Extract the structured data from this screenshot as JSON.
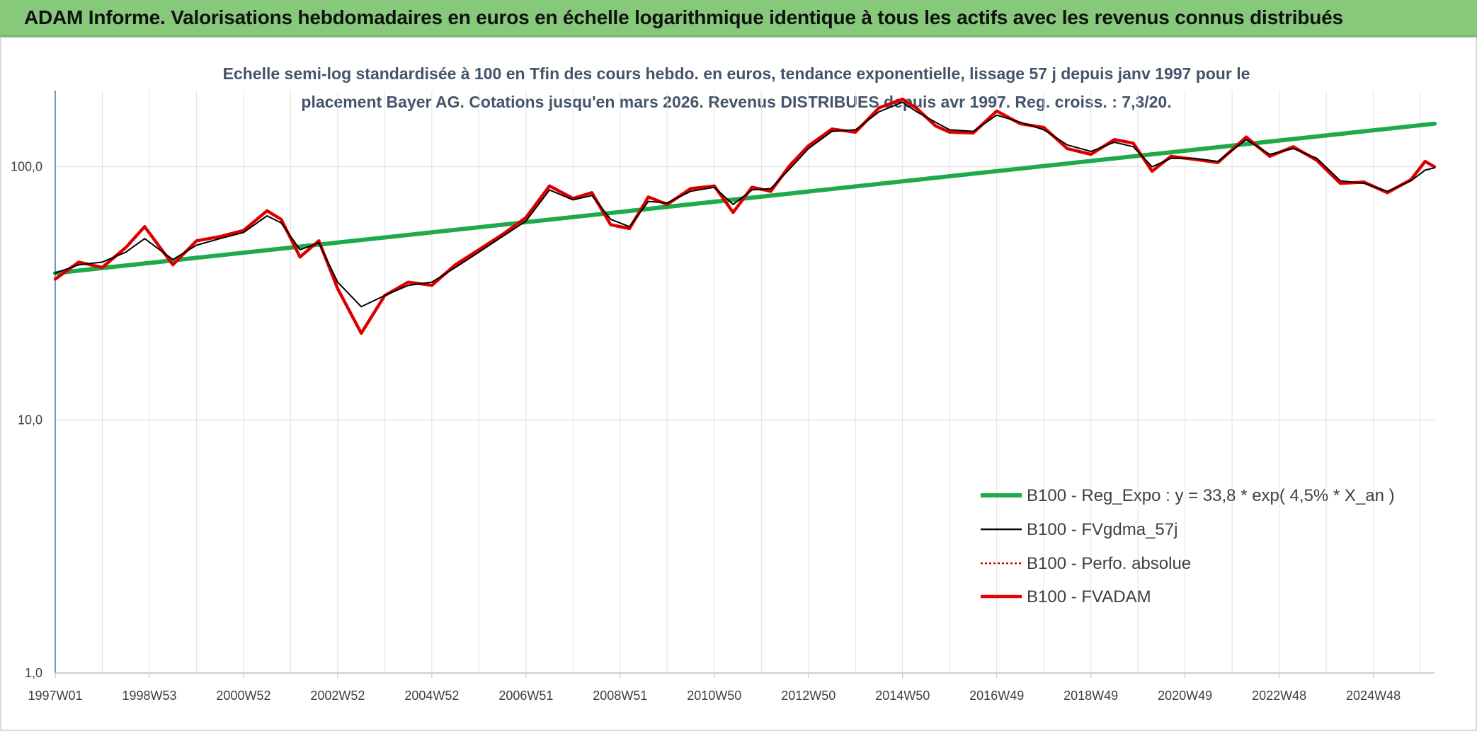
{
  "header": {
    "title": "ADAM Informe. Valorisations hebdomadaires en euros en échelle logarithmique identique à tous les actifs avec les revenus connus distribués"
  },
  "colors": {
    "header_bg": "#86c97a",
    "corner": "#f2b91c",
    "trend": "#1faa4a",
    "smooth": "#000000",
    "fvadam": "#ee0000"
  },
  "chart_data": {
    "type": "line",
    "subtitle_lines": [
      "Echelle semi-log standardisée à 100 en Tfin des cours hebdo. en euros, tendance exponentielle, lissage 57 j depuis janv 1997 pour le",
      "placement Bayer AG. Cotations jusqu'en mars 2026. Revenus DISTRIBUES depuis avr 1997. Reg. croiss. : 7,3/20."
    ],
    "y_scale": "log",
    "ylim": [
      1,
      200
    ],
    "xlim": [
      1997.0,
      2026.3
    ],
    "y_ticks": [
      {
        "value": 1,
        "label": "1,0"
      },
      {
        "value": 10,
        "label": "10,0"
      },
      {
        "value": 100,
        "label": "100,0"
      }
    ],
    "x_ticks": [
      {
        "value": 1997.0,
        "label": "1997W01"
      },
      {
        "value": 1999.0,
        "label": "1998W53"
      },
      {
        "value": 2001.0,
        "label": "2000W52"
      },
      {
        "value": 2003.0,
        "label": "2002W52"
      },
      {
        "value": 2005.0,
        "label": "2004W52"
      },
      {
        "value": 2007.0,
        "label": "2006W51"
      },
      {
        "value": 2009.0,
        "label": "2008W51"
      },
      {
        "value": 2011.0,
        "label": "2010W50"
      },
      {
        "value": 2013.0,
        "label": "2012W50"
      },
      {
        "value": 2015.0,
        "label": "2014W50"
      },
      {
        "value": 2017.0,
        "label": "2016W49"
      },
      {
        "value": 2019.0,
        "label": "2018W49"
      },
      {
        "value": 2021.0,
        "label": "2020W49"
      },
      {
        "value": 2023.0,
        "label": "2022W48"
      },
      {
        "value": 2025.0,
        "label": "2024W48"
      }
    ],
    "grid": true,
    "legend_position": "bottom-right",
    "series": [
      {
        "name": "B100 - Reg_Expo : y = 33,8 * exp( 4,5% *  X_an )",
        "color": "#1faa4a",
        "style": "solid-thick",
        "x": [
          1997.0,
          2026.3
        ],
        "values": [
          38,
          148
        ]
      },
      {
        "name": "B100 - FVgdma_57j",
        "color": "#000000",
        "style": "solid-thin",
        "x": [
          1997.0,
          1997.5,
          1998.0,
          1998.5,
          1998.9,
          1999.5,
          2000.0,
          2000.5,
          2001.0,
          2001.5,
          2001.8,
          2002.2,
          2002.6,
          2003.0,
          2003.5,
          2004.0,
          2004.5,
          2005.0,
          2005.5,
          2006.0,
          2006.5,
          2007.0,
          2007.5,
          2008.0,
          2008.4,
          2008.8,
          2009.2,
          2009.6,
          2010.0,
          2010.5,
          2011.0,
          2011.4,
          2011.8,
          2012.2,
          2012.6,
          2013.0,
          2013.5,
          2014.0,
          2014.5,
          2015.0,
          2015.3,
          2015.7,
          2016.0,
          2016.5,
          2017.0,
          2017.5,
          2018.0,
          2018.5,
          2019.0,
          2019.5,
          2019.9,
          2020.3,
          2020.7,
          2021.2,
          2021.7,
          2022.3,
          2022.8,
          2023.3,
          2023.8,
          2024.3,
          2024.8,
          2025.3,
          2025.8,
          2026.1,
          2026.3
        ],
        "values": [
          38,
          41,
          42,
          46,
          52,
          43,
          49,
          52,
          55,
          64,
          60,
          47,
          50,
          35,
          28,
          31,
          34,
          35,
          40,
          46,
          53,
          61,
          81,
          74,
          77,
          62,
          58,
          73,
          72,
          80,
          83,
          71,
          81,
          82,
          98,
          118,
          138,
          140,
          165,
          180,
          165,
          150,
          140,
          138,
          160,
          150,
          140,
          122,
          115,
          125,
          120,
          100,
          108,
          108,
          105,
          128,
          112,
          118,
          108,
          88,
          86,
          80,
          88,
          97,
          99
        ]
      },
      {
        "name": "B100 - Perfo. absolue",
        "color": "#c00000",
        "style": "dotted",
        "x": [
          1997.0,
          1997.5,
          1998.0,
          1998.5,
          1998.9,
          1999.5,
          2000.0,
          2000.5,
          2001.0,
          2001.5,
          2001.8,
          2002.2,
          2002.6,
          2003.0,
          2003.5,
          2004.0,
          2004.5,
          2005.0,
          2005.5,
          2006.0,
          2006.5,
          2007.0,
          2007.5,
          2008.0,
          2008.4,
          2008.8,
          2009.2,
          2009.6,
          2010.0,
          2010.5,
          2011.0,
          2011.4,
          2011.8,
          2012.2,
          2012.6,
          2013.0,
          2013.5,
          2014.0,
          2014.5,
          2015.0,
          2015.3,
          2015.7,
          2016.0,
          2016.5,
          2017.0,
          2017.5,
          2018.0,
          2018.5,
          2019.0,
          2019.5,
          2019.9,
          2020.3,
          2020.7,
          2021.2,
          2021.7,
          2022.3,
          2022.8,
          2023.3,
          2023.8,
          2024.3,
          2024.8,
          2025.3,
          2025.8,
          2026.1,
          2026.3
        ],
        "values": [
          36,
          42,
          40,
          48,
          58,
          41,
          51,
          53,
          56,
          67,
          62,
          44,
          51,
          33,
          22,
          31,
          35,
          34,
          41,
          47,
          54,
          63,
          84,
          75,
          79,
          59,
          57,
          76,
          71,
          82,
          84,
          66,
          83,
          80,
          101,
          121,
          141,
          137,
          171,
          185,
          170,
          145,
          137,
          136,
          166,
          148,
          143,
          118,
          112,
          128,
          124,
          96,
          110,
          107,
          104,
          131,
          110,
          120,
          106,
          86,
          87,
          79,
          89,
          105,
          100
        ]
      },
      {
        "name": "B100 - FVADAM",
        "color": "#ee0000",
        "style": "solid-thick",
        "x": [
          1997.0,
          1997.5,
          1998.0,
          1998.5,
          1998.9,
          1999.5,
          2000.0,
          2000.5,
          2001.0,
          2001.5,
          2001.8,
          2002.2,
          2002.6,
          2003.0,
          2003.5,
          2004.0,
          2004.5,
          2005.0,
          2005.5,
          2006.0,
          2006.5,
          2007.0,
          2007.5,
          2008.0,
          2008.4,
          2008.8,
          2009.2,
          2009.6,
          2010.0,
          2010.5,
          2011.0,
          2011.4,
          2011.8,
          2012.2,
          2012.6,
          2013.0,
          2013.5,
          2014.0,
          2014.5,
          2015.0,
          2015.3,
          2015.7,
          2016.0,
          2016.5,
          2017.0,
          2017.5,
          2018.0,
          2018.5,
          2019.0,
          2019.5,
          2019.9,
          2020.3,
          2020.7,
          2021.2,
          2021.7,
          2022.3,
          2022.8,
          2023.3,
          2023.8,
          2024.3,
          2024.8,
          2025.3,
          2025.8,
          2026.1,
          2026.3
        ],
        "values": [
          36,
          42,
          40,
          48,
          58,
          41,
          51,
          53,
          56,
          67,
          62,
          44,
          51,
          33,
          22,
          31,
          35,
          34,
          41,
          47,
          54,
          63,
          84,
          75,
          79,
          59,
          57,
          76,
          71,
          82,
          84,
          66,
          83,
          80,
          101,
          121,
          141,
          137,
          171,
          185,
          170,
          145,
          137,
          136,
          166,
          148,
          143,
          118,
          112,
          128,
          124,
          96,
          110,
          107,
          104,
          131,
          110,
          120,
          106,
          86,
          87,
          79,
          89,
          105,
          100
        ]
      }
    ]
  }
}
